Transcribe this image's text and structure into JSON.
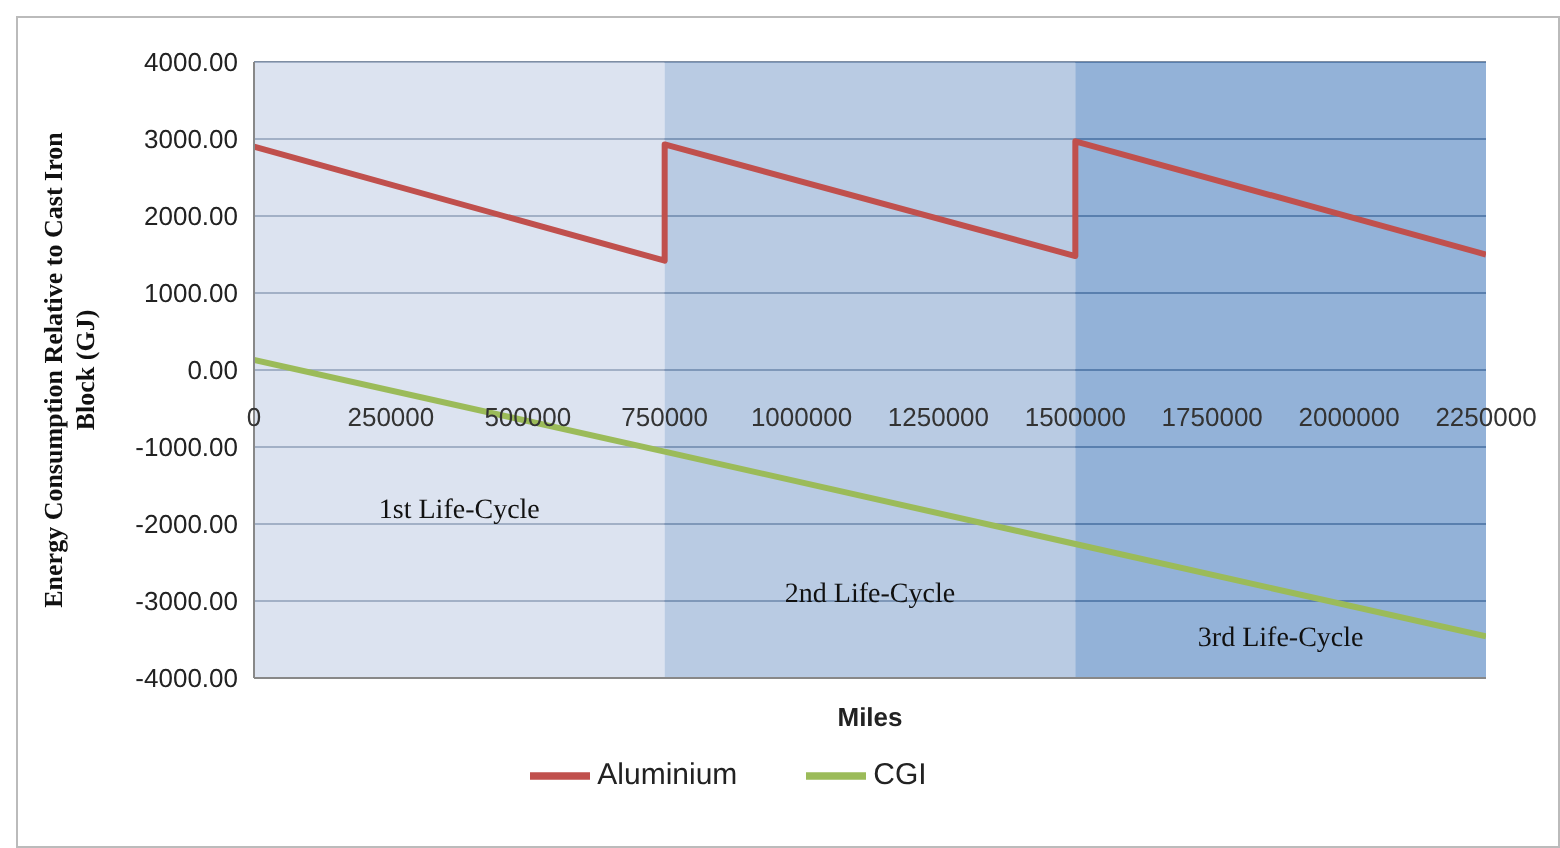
{
  "chart_data": {
    "type": "line",
    "xlabel": "Miles",
    "ylabel": "Energy Consumption Relative to Cast Iron Block (GJ)",
    "x": [
      0,
      750000,
      750000,
      1500000,
      1500000,
      2250000
    ],
    "series": [
      {
        "name": "Aluminium",
        "color": "#c0504d",
        "values": [
          2900,
          1420,
          2930,
          1480,
          2970,
          1500
        ]
      },
      {
        "name": "CGI",
        "color": "#9bbb59",
        "values": [
          130,
          -1060,
          -1060,
          -2260,
          -2260,
          -3460
        ]
      }
    ],
    "xlim": [
      0,
      2250000
    ],
    "xticks": [
      0,
      250000,
      500000,
      750000,
      1000000,
      1250000,
      1500000,
      1750000,
      2000000,
      2250000
    ],
    "ylim": [
      -4000,
      4000
    ],
    "yticks": [
      {
        "value": -4000,
        "label": "-4000.00"
      },
      {
        "value": -3000,
        "label": "-3000.00"
      },
      {
        "value": -2000,
        "label": "-2000.00"
      },
      {
        "value": -1000,
        "label": "-1000.00"
      },
      {
        "value": 0,
        "label": "0.00"
      },
      {
        "value": 1000,
        "label": "1000.00"
      },
      {
        "value": 2000,
        "label": "2000.00"
      },
      {
        "value": 3000,
        "label": "3000.00"
      },
      {
        "value": 4000,
        "label": "4000.00"
      }
    ],
    "bands": [
      {
        "axis": "x",
        "from": 0,
        "to": 750000,
        "label": "1st Life-Cycle",
        "color": "#bfcce4"
      },
      {
        "axis": "x",
        "from": 750000,
        "to": 1500000,
        "label": "2nd Life-Cycle",
        "color": "#80a0cc"
      },
      {
        "axis": "x",
        "from": 1500000,
        "to": 2250000,
        "label": "3rd Life-Cycle",
        "color": "#3b73b8"
      }
    ],
    "grid": "y",
    "legend": "bottom",
    "marker": "none",
    "line_style": "solid"
  }
}
